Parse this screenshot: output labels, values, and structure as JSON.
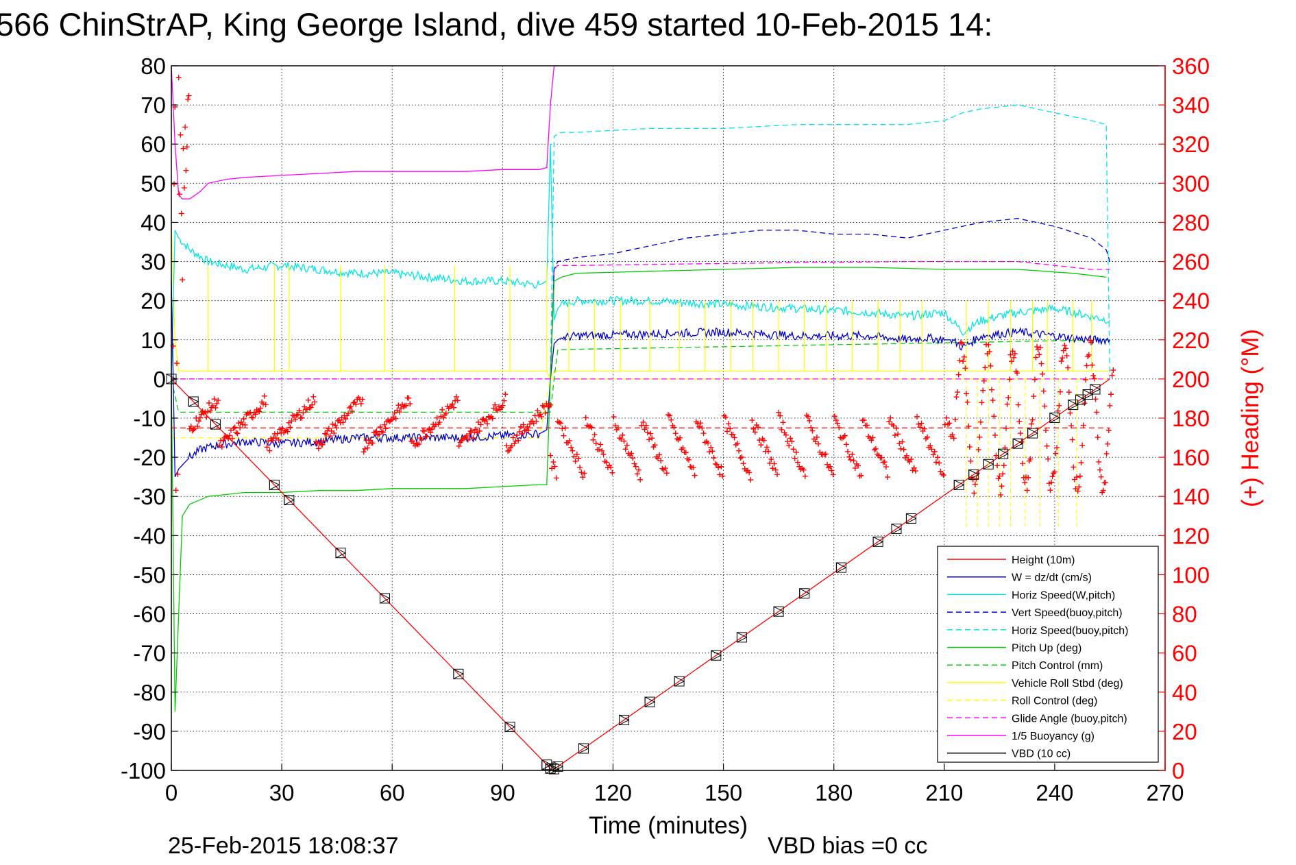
{
  "chart_data": {
    "type": "line",
    "title": "566 ChinStrAP, King George Island, dive 459 started 10-Feb-2015 14:",
    "xlabel": "Time (minutes)",
    "ylabel": "",
    "y2label": "(+) Heading (°M)",
    "xlim": [
      0,
      270
    ],
    "ylim": [
      -100,
      80
    ],
    "y2lim": [
      0,
      360
    ],
    "xticks": [
      "0",
      "30",
      "60",
      "90",
      "120",
      "150",
      "180",
      "210",
      "240",
      "270"
    ],
    "yticks": [
      "80",
      "70",
      "60",
      "50",
      "40",
      "30",
      "20",
      "10",
      "0",
      "-10",
      "-20",
      "-30",
      "-40",
      "-50",
      "-60",
      "-70",
      "-80",
      "-90",
      "-100"
    ],
    "y2ticks": [
      "360",
      "340",
      "320",
      "300",
      "280",
      "260",
      "240",
      "220",
      "200",
      "180",
      "160",
      "140",
      "120",
      "100",
      "80",
      "60",
      "40",
      "20",
      "0"
    ],
    "grid": true,
    "legend_position": "bottom-right",
    "footer_left": "25-Feb-2015 18:08:37",
    "footer_right": "VBD bias =0 cc",
    "series": [
      {
        "name": "Height (10m)",
        "color": "#ff0000",
        "style": "solid",
        "x": [
          0,
          103.5,
          255
        ],
        "y": [
          0,
          -100,
          0
        ]
      },
      {
        "name": "W = dz/dt (cm/s)",
        "color": "#0000cc",
        "style": "solid",
        "x": [
          0,
          1,
          2,
          3,
          5,
          8,
          12,
          20,
          30,
          40,
          50,
          60,
          70,
          80,
          90,
          100,
          102,
          103,
          104,
          105,
          106,
          110,
          130,
          150,
          170,
          190,
          200,
          205,
          210,
          212,
          215,
          220,
          230,
          240,
          250,
          255
        ],
        "y": [
          25,
          -25,
          -23,
          -22,
          -20,
          -18,
          -17,
          -16,
          -16.5,
          -16,
          -15,
          -15,
          -15,
          -15,
          -14.5,
          -14,
          -13,
          0,
          9,
          10,
          10.5,
          11,
          11.5,
          12,
          11,
          11,
          10,
          10.5,
          10,
          10,
          8,
          11,
          12,
          11,
          10,
          10
        ]
      },
      {
        "name": "Horiz Speed(W,pitch)",
        "color": "#00e5e5",
        "style": "solid",
        "x": [
          0,
          1,
          2,
          5,
          10,
          20,
          30,
          40,
          50,
          60,
          70,
          80,
          90,
          100,
          102,
          103,
          104,
          105,
          106,
          110,
          130,
          150,
          170,
          190,
          200,
          210,
          215,
          220,
          230,
          240,
          250,
          255
        ],
        "y": [
          0,
          38,
          36,
          33,
          30,
          28,
          29,
          28,
          27,
          27,
          26,
          25,
          25,
          24,
          25,
          60,
          15,
          18,
          19,
          20,
          20,
          19,
          18,
          17,
          16,
          17,
          12,
          15,
          17,
          18,
          16,
          15
        ]
      },
      {
        "name": "Vert Speed(buoy,pitch)",
        "color": "#0000cc",
        "style": "dashed",
        "x": [
          103,
          104,
          105,
          110,
          120,
          130,
          140,
          150,
          160,
          170,
          180,
          190,
          200,
          210,
          220,
          230,
          240,
          250,
          254,
          255
        ],
        "y": [
          0,
          28,
          30,
          31,
          32,
          34,
          36,
          37,
          38,
          38,
          37,
          37,
          36,
          38,
          40,
          41,
          39,
          36,
          33,
          30
        ]
      },
      {
        "name": "Horiz Speed(buoy,pitch)",
        "color": "#00e5e5",
        "style": "dashed",
        "x": [
          103,
          104,
          106,
          110,
          130,
          150,
          170,
          190,
          200,
          210,
          215,
          220,
          230,
          240,
          250,
          254,
          255
        ],
        "y": [
          0,
          62,
          63,
          63,
          64,
          64,
          65,
          65,
          65,
          66,
          68,
          69,
          70,
          68,
          66,
          65,
          0
        ]
      },
      {
        "name": "Pitch Up (deg)",
        "color": "#00cc00",
        "style": "solid",
        "x": [
          0,
          1,
          2,
          3,
          5,
          10,
          20,
          30,
          40,
          50,
          60,
          70,
          80,
          90,
          100,
          102,
          103,
          104,
          106,
          110,
          130,
          150,
          170,
          190,
          210,
          230,
          245,
          254
        ],
        "y": [
          0,
          -85,
          -60,
          -35,
          -32,
          -30,
          -29,
          -29,
          -28.5,
          -28.5,
          -28,
          -28,
          -28,
          -27.5,
          -27,
          -27,
          0,
          25,
          26,
          27,
          27.5,
          28,
          28.5,
          28.5,
          28,
          28,
          27,
          26
        ]
      },
      {
        "name": "Pitch Control (mm)",
        "color": "#00cc00",
        "style": "dashed",
        "x": [
          0,
          2,
          3,
          5,
          103,
          104,
          105,
          255
        ],
        "y": [
          0,
          -8.5,
          -8.5,
          -8.5,
          -8.5,
          0,
          7.5,
          10
        ]
      },
      {
        "name": "Vehicle Roll Stbd (deg)",
        "color": "#ffff00",
        "style": "solid",
        "x": [
          0,
          1,
          2,
          5,
          30,
          60,
          90,
          100,
          102,
          103,
          104,
          110,
          150,
          200,
          210,
          215,
          230,
          250,
          255
        ],
        "y": [
          40,
          10,
          2,
          2,
          2,
          2,
          2,
          2,
          2,
          0,
          2,
          2,
          2,
          2,
          2,
          2,
          2,
          2,
          2
        ]
      },
      {
        "name": "Roll Control (deg)",
        "color": "#ffff00",
        "style": "dashed",
        "x": [
          0,
          2,
          5,
          100,
          103,
          104,
          110,
          150,
          200,
          255
        ],
        "y": [
          -15,
          -15,
          -15,
          -15,
          0,
          0,
          0,
          0,
          0,
          0
        ]
      },
      {
        "name": "Glide Angle (buoy,pitch)",
        "color": "#ff00ff",
        "style": "dashed",
        "x": [
          0,
          103,
          104,
          105,
          110,
          150,
          200,
          230,
          250,
          255
        ],
        "y": [
          0,
          0,
          28,
          29,
          29,
          29.5,
          30,
          30,
          28,
          28
        ]
      },
      {
        "name": "1/5 Buoyancy (g)",
        "color": "#ff00ff",
        "style": "solid",
        "x": [
          0,
          1,
          2,
          3,
          5,
          8,
          10,
          15,
          20,
          30,
          40,
          50,
          60,
          70,
          80,
          90,
          100,
          102,
          103,
          104,
          105
        ],
        "y": [
          80,
          60,
          47,
          46,
          46,
          48,
          50,
          51,
          51.5,
          52,
          52.5,
          53,
          53,
          53,
          53,
          53.5,
          53.5,
          54,
          70,
          80,
          80
        ]
      },
      {
        "name": "VBD (10 cc)",
        "color": "#000000",
        "style": "solid",
        "x": [
          0,
          1,
          2,
          3,
          100,
          102,
          103,
          104,
          106,
          110,
          200,
          201,
          210,
          211,
          219,
          220,
          240,
          241,
          250,
          251,
          255
        ],
        "y": [
          25,
          0,
          -8,
          -9,
          -9,
          -9,
          0,
          8,
          10,
          10,
          10,
          12,
          12,
          14,
          14,
          15.5,
          15.5,
          16,
          16,
          16.5,
          16.5
        ]
      }
    ],
    "heading": {
      "name": "Heading",
      "color": "#ff0000",
      "marker": "+",
      "axis": "right",
      "target_y2": 175
    },
    "waypoints": {
      "marker": "triangle-in-box",
      "color": "#000000",
      "x": [
        0,
        6,
        12,
        28,
        32,
        46,
        58,
        78,
        92,
        102,
        103,
        104,
        105,
        112,
        123,
        130,
        138,
        148,
        155,
        165,
        172,
        182,
        192,
        197,
        201,
        214,
        218,
        222,
        226,
        230,
        234,
        240,
        245,
        247,
        249,
        251
      ]
    }
  }
}
